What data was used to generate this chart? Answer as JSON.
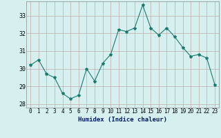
{
  "x": [
    0,
    1,
    2,
    3,
    4,
    5,
    6,
    7,
    8,
    9,
    10,
    11,
    12,
    13,
    14,
    15,
    16,
    17,
    18,
    19,
    20,
    21,
    22,
    23
  ],
  "y": [
    30.2,
    30.5,
    29.7,
    29.5,
    28.6,
    28.3,
    28.5,
    30.0,
    29.3,
    30.3,
    30.8,
    32.2,
    32.1,
    32.3,
    33.6,
    32.3,
    31.9,
    32.3,
    31.8,
    31.2,
    30.7,
    30.8,
    30.6,
    29.1
  ],
  "line_color": "#1a7a6e",
  "marker": "*",
  "marker_size": 3,
  "bg_color": "#d6f0f0",
  "grid_color": "#c0a8a8",
  "xlabel": "Humidex (Indice chaleur)",
  "ylim": [
    27.8,
    33.8
  ],
  "xlim": [
    -0.5,
    23.5
  ],
  "yticks": [
    28,
    29,
    30,
    31,
    32,
    33
  ],
  "xticks": [
    0,
    1,
    2,
    3,
    4,
    5,
    6,
    7,
    8,
    9,
    10,
    11,
    12,
    13,
    14,
    15,
    16,
    17,
    18,
    19,
    20,
    21,
    22,
    23
  ],
  "tick_fontsize": 5.5,
  "xlabel_fontsize": 6.5
}
